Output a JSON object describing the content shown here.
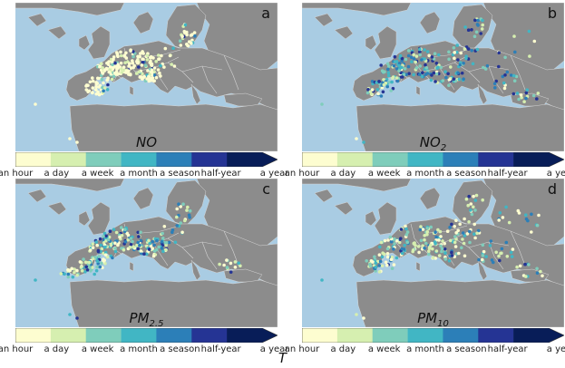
{
  "figure": {
    "x_label": "T"
  },
  "colorbar": {
    "ticks": [
      "an hour",
      "a day",
      "a week",
      "a month",
      "a season",
      "half-year",
      "a year"
    ],
    "colors": [
      "#fdfdd0",
      "#d6efb0",
      "#7fcdbb",
      "#41b6c4",
      "#2c7fb8",
      "#253494",
      "#081d58"
    ]
  },
  "colors": {
    "sea": "#a9cce3",
    "land": "#8c8c8c",
    "border": "#d4d4d4"
  },
  "panels": [
    {
      "letter": "a",
      "title": "NO",
      "title_sub": "",
      "category_mix": [
        0.7,
        0.16,
        0.07,
        0.03,
        0.02,
        0.02
      ],
      "spread": "central"
    },
    {
      "letter": "b",
      "title": "NO",
      "title_sub": "2",
      "category_mix": [
        0.12,
        0.16,
        0.18,
        0.18,
        0.18,
        0.18
      ],
      "spread": "wide"
    },
    {
      "letter": "c",
      "title": "PM",
      "title_sub": "2.5",
      "category_mix": [
        0.18,
        0.22,
        0.18,
        0.16,
        0.14,
        0.12
      ],
      "spread": "west"
    },
    {
      "letter": "d",
      "title": "PM",
      "title_sub": "10",
      "category_mix": [
        0.26,
        0.26,
        0.2,
        0.14,
        0.08,
        0.06
      ],
      "spread": "wide"
    }
  ]
}
